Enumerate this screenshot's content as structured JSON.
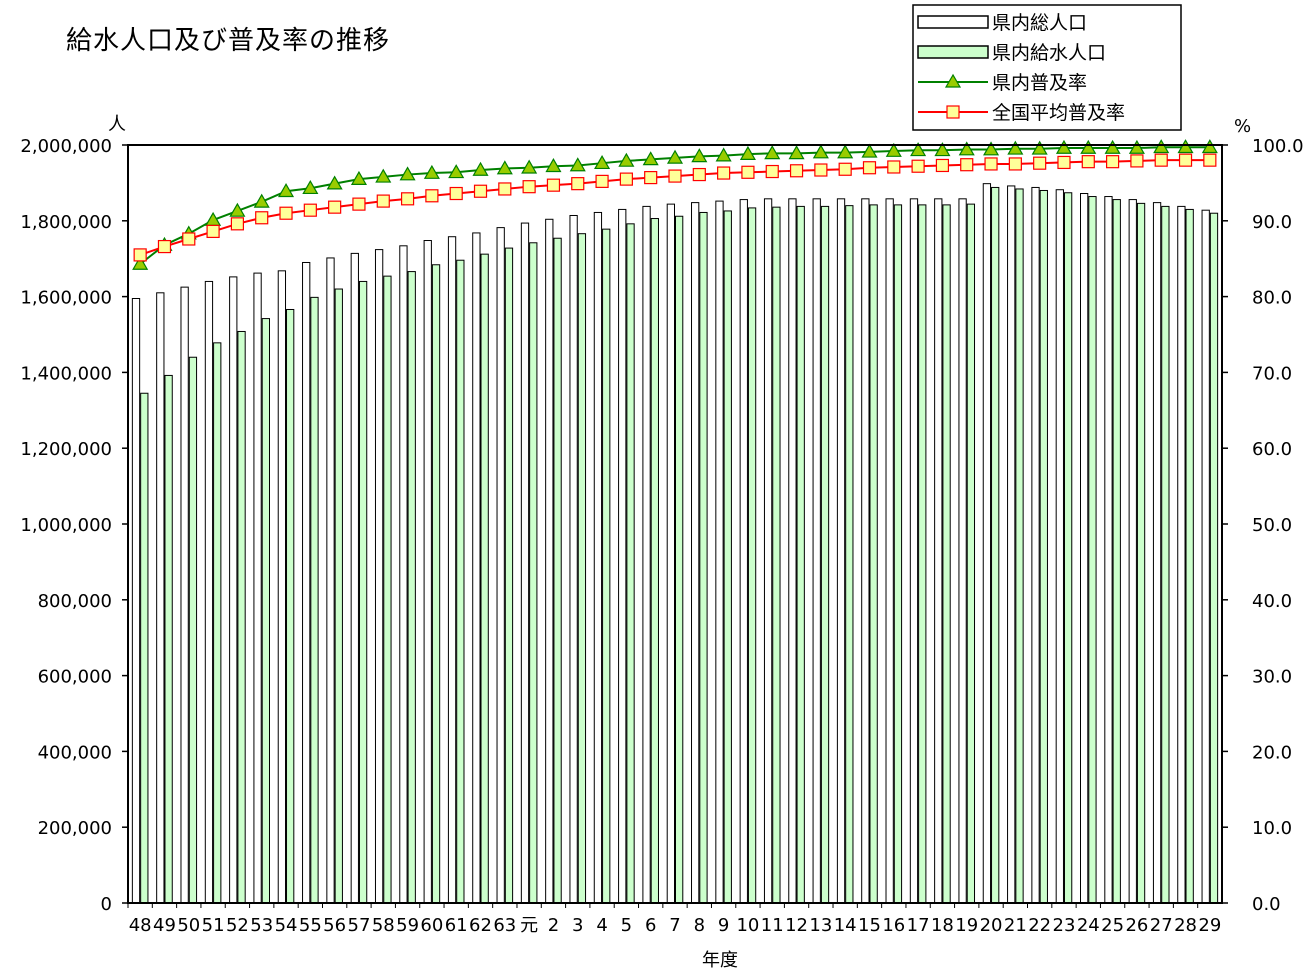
{
  "chart_data": {
    "type": "bar",
    "title": "給水人口及び普及率の推移",
    "xlabel": "年度",
    "ylabel_left": "人",
    "ylabel_right": "%",
    "ylim_left": [
      0,
      2000000
    ],
    "ylim_right": [
      0,
      100
    ],
    "yticks_left": [
      "0",
      "200,000",
      "400,000",
      "600,000",
      "800,000",
      "1,000,000",
      "1,200,000",
      "1,400,000",
      "1,600,000",
      "1,800,000",
      "2,000,000"
    ],
    "yticks_right": [
      "0.0",
      "10.0",
      "20.0",
      "30.0",
      "40.0",
      "50.0",
      "60.0",
      "70.0",
      "80.0",
      "90.0",
      "100.0"
    ],
    "categories": [
      "48",
      "49",
      "50",
      "51",
      "52",
      "53",
      "54",
      "55",
      "56",
      "57",
      "58",
      "59",
      "60",
      "61",
      "62",
      "63",
      "元",
      "2",
      "3",
      "4",
      "5",
      "6",
      "7",
      "8",
      "9",
      "10",
      "11",
      "12",
      "13",
      "14",
      "15",
      "16",
      "17",
      "18",
      "19",
      "20",
      "21",
      "22",
      "23",
      "24",
      "25",
      "26",
      "27",
      "28",
      "29"
    ],
    "grid": false,
    "legend_position": "top-right",
    "series": [
      {
        "name": "県内総人口",
        "kind": "bar",
        "color": "#ffffff",
        "stroke": "#000000",
        "values": [
          1595000,
          1610000,
          1625000,
          1640000,
          1652000,
          1662000,
          1668000,
          1690000,
          1702000,
          1714000,
          1724000,
          1734000,
          1748000,
          1758000,
          1768000,
          1782000,
          1794000,
          1804000,
          1814000,
          1822000,
          1830000,
          1838000,
          1844000,
          1848000,
          1852000,
          1856000,
          1858000,
          1858000,
          1858000,
          1858000,
          1858000,
          1858000,
          1858000,
          1858000,
          1858000,
          1898000,
          1892000,
          1888000,
          1882000,
          1872000,
          1864000,
          1856000,
          1848000,
          1838000,
          1828000
        ]
      },
      {
        "name": "県内給水人口",
        "kind": "bar",
        "color": "#ccffcc",
        "stroke": "#000000",
        "values": [
          1345000,
          1392000,
          1440000,
          1478000,
          1508000,
          1542000,
          1566000,
          1598000,
          1620000,
          1640000,
          1654000,
          1666000,
          1684000,
          1696000,
          1712000,
          1728000,
          1742000,
          1754000,
          1766000,
          1778000,
          1792000,
          1806000,
          1812000,
          1822000,
          1826000,
          1834000,
          1836000,
          1838000,
          1838000,
          1840000,
          1842000,
          1842000,
          1842000,
          1842000,
          1844000,
          1888000,
          1884000,
          1880000,
          1874000,
          1864000,
          1856000,
          1846000,
          1838000,
          1830000,
          1820000
        ]
      },
      {
        "name": "県内普及率",
        "kind": "line",
        "color": "#008000",
        "marker": "triangle",
        "marker_fill": "#99cc00",
        "values": [
          84.3,
          86.8,
          88.3,
          90.1,
          91.3,
          92.5,
          93.9,
          94.3,
          94.9,
          95.5,
          95.8,
          96.1,
          96.3,
          96.4,
          96.7,
          96.9,
          97.0,
          97.2,
          97.3,
          97.6,
          97.9,
          98.1,
          98.3,
          98.5,
          98.6,
          98.8,
          98.9,
          98.9,
          99.0,
          99.0,
          99.1,
          99.2,
          99.3,
          99.3,
          99.4,
          99.4,
          99.5,
          99.5,
          99.6,
          99.6,
          99.6,
          99.6,
          99.7,
          99.7,
          99.7
        ]
      },
      {
        "name": "全国平均普及率",
        "kind": "line",
        "color": "#ff0000",
        "marker": "square",
        "marker_fill": "#ffff99",
        "values": [
          85.5,
          86.6,
          87.6,
          88.6,
          89.6,
          90.4,
          91.0,
          91.4,
          91.8,
          92.2,
          92.6,
          92.9,
          93.3,
          93.6,
          93.9,
          94.2,
          94.5,
          94.7,
          94.9,
          95.2,
          95.5,
          95.7,
          95.9,
          96.1,
          96.3,
          96.4,
          96.5,
          96.6,
          96.7,
          96.8,
          97.0,
          97.1,
          97.2,
          97.3,
          97.4,
          97.5,
          97.5,
          97.6,
          97.7,
          97.8,
          97.8,
          97.9,
          98.0,
          98.0,
          98.0
        ]
      }
    ]
  }
}
